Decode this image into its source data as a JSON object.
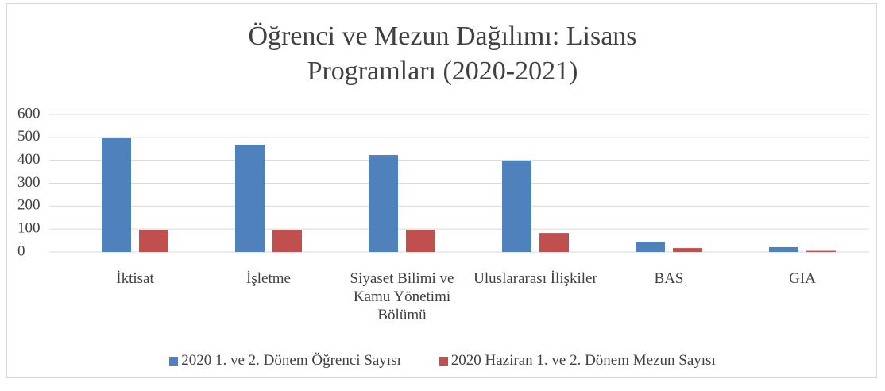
{
  "chart_data": {
    "type": "bar",
    "title": "Öğrenci ve Mezun Dağılımı: Lisans Programları (2020-2021)",
    "categories": [
      "İktisat",
      "İşletme",
      "Siyaset Bilimi ve Kamu Yönetimi Bölümü",
      "Uluslararası İlişkiler",
      "BAS",
      "GIA"
    ],
    "series": [
      {
        "name": "2020 1. ve 2. Dönem Öğrenci Sayısı",
        "color": "#4f81bd",
        "values": [
          496,
          468,
          423,
          399,
          45,
          21
        ]
      },
      {
        "name": "2020 Haziran 1. ve 2. Dönem Mezun Sayısı",
        "color": "#c0504d",
        "values": [
          97,
          94,
          97,
          83,
          17,
          5
        ]
      }
    ],
    "ylim": [
      0,
      600
    ],
    "yticks": [
      0,
      100,
      200,
      300,
      400,
      500,
      600
    ],
    "grid": true,
    "legend": "bottom"
  }
}
